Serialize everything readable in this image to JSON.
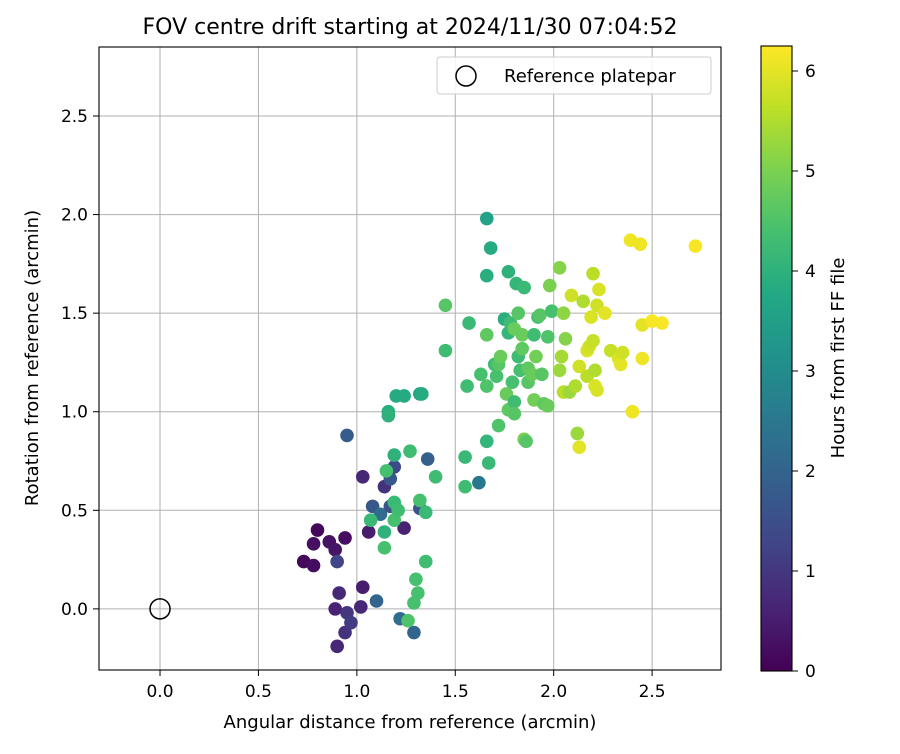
{
  "chart_data": {
    "type": "scatter",
    "title": "FOV centre drift starting at 2024/11/30 07:04:52",
    "xlabel": "Angular distance from reference (arcmin)",
    "ylabel": "Rotation from reference (arcmin)",
    "xlim": [
      -0.31,
      2.85
    ],
    "ylim": [
      -0.31,
      2.85
    ],
    "xticks": [
      0.0,
      0.5,
      1.0,
      1.5,
      2.0,
      2.5
    ],
    "yticks": [
      0.0,
      0.5,
      1.0,
      1.5,
      2.0,
      2.5
    ],
    "xtick_labels": [
      "0.0",
      "0.5",
      "1.0",
      "1.5",
      "2.0",
      "2.5"
    ],
    "ytick_labels": [
      "0.0",
      "0.5",
      "1.0",
      "1.5",
      "2.0",
      "2.5"
    ],
    "grid": true,
    "legend": {
      "placement": "top-right",
      "label": "Reference platepar",
      "marker": "open-circle"
    },
    "reference_point": {
      "x": 0.0,
      "y": 0.0
    },
    "colorbar": {
      "label": "Hours from first FF file",
      "range": [
        0,
        6.25
      ],
      "ticks": [
        0,
        1,
        2,
        3,
        4,
        5,
        6
      ],
      "tick_labels": [
        "0",
        "1",
        "2",
        "3",
        "4",
        "5",
        "6"
      ],
      "colormap": "viridis"
    },
    "points": [
      {
        "x": 0.73,
        "y": 0.24,
        "h": 0.15
      },
      {
        "x": 0.78,
        "y": 0.22,
        "h": 0.2
      },
      {
        "x": 0.78,
        "y": 0.33,
        "h": 0.25
      },
      {
        "x": 0.8,
        "y": 0.4,
        "h": 0.1
      },
      {
        "x": 0.86,
        "y": 0.34,
        "h": 0.3
      },
      {
        "x": 0.89,
        "y": 0.3,
        "h": 0.35
      },
      {
        "x": 0.94,
        "y": 0.36,
        "h": 0.2
      },
      {
        "x": 0.89,
        "y": 0.0,
        "h": 0.6
      },
      {
        "x": 0.91,
        "y": 0.08,
        "h": 0.7
      },
      {
        "x": 0.9,
        "y": 0.24,
        "h": 1.3
      },
      {
        "x": 0.9,
        "y": -0.19,
        "h": 0.7
      },
      {
        "x": 0.94,
        "y": -0.12,
        "h": 0.9
      },
      {
        "x": 0.95,
        "y": -0.02,
        "h": 1.0
      },
      {
        "x": 0.97,
        "y": -0.07,
        "h": 1.1
      },
      {
        "x": 0.95,
        "y": 0.88,
        "h": 1.8
      },
      {
        "x": 1.02,
        "y": 0.01,
        "h": 0.7
      },
      {
        "x": 1.03,
        "y": 0.11,
        "h": 0.5
      },
      {
        "x": 1.03,
        "y": 0.67,
        "h": 0.7
      },
      {
        "x": 1.06,
        "y": 0.39,
        "h": 0.5
      },
      {
        "x": 1.08,
        "y": 0.52,
        "h": 1.7
      },
      {
        "x": 1.1,
        "y": 0.04,
        "h": 2.0
      },
      {
        "x": 1.12,
        "y": 0.48,
        "h": 2.2
      },
      {
        "x": 1.14,
        "y": 0.62,
        "h": 0.9
      },
      {
        "x": 1.17,
        "y": 0.52,
        "h": 1.6
      },
      {
        "x": 1.17,
        "y": 0.66,
        "h": 1.7
      },
      {
        "x": 1.19,
        "y": 0.72,
        "h": 1.4
      },
      {
        "x": 1.22,
        "y": -0.05,
        "h": 2.2
      },
      {
        "x": 1.24,
        "y": 0.41,
        "h": 0.6
      },
      {
        "x": 1.29,
        "y": -0.12,
        "h": 2.0
      },
      {
        "x": 1.32,
        "y": 0.51,
        "h": 1.6
      },
      {
        "x": 1.36,
        "y": 0.76,
        "h": 1.9
      },
      {
        "x": 1.62,
        "y": 0.64,
        "h": 2.5
      },
      {
        "x": 1.07,
        "y": 0.45,
        "h": 4.2
      },
      {
        "x": 1.14,
        "y": 0.39,
        "h": 4.0
      },
      {
        "x": 1.14,
        "y": 0.31,
        "h": 4.4
      },
      {
        "x": 1.15,
        "y": 0.7,
        "h": 4.4
      },
      {
        "x": 1.16,
        "y": 1.0,
        "h": 3.9
      },
      {
        "x": 1.16,
        "y": 0.98,
        "h": 4.0
      },
      {
        "x": 1.19,
        "y": 0.78,
        "h": 4.0
      },
      {
        "x": 1.19,
        "y": 0.54,
        "h": 4.2
      },
      {
        "x": 1.19,
        "y": 0.45,
        "h": 4.4
      },
      {
        "x": 1.2,
        "y": 1.08,
        "h": 3.8
      },
      {
        "x": 1.24,
        "y": 1.08,
        "h": 3.8
      },
      {
        "x": 1.21,
        "y": 0.5,
        "h": 4.3
      },
      {
        "x": 1.26,
        "y": -0.06,
        "h": 4.5
      },
      {
        "x": 1.27,
        "y": 0.8,
        "h": 4.3
      },
      {
        "x": 1.29,
        "y": 0.03,
        "h": 4.4
      },
      {
        "x": 1.3,
        "y": 0.15,
        "h": 4.4
      },
      {
        "x": 1.31,
        "y": 0.08,
        "h": 4.4
      },
      {
        "x": 1.32,
        "y": 1.09,
        "h": 3.7
      },
      {
        "x": 1.33,
        "y": 1.09,
        "h": 3.8
      },
      {
        "x": 1.32,
        "y": 0.55,
        "h": 4.4
      },
      {
        "x": 1.35,
        "y": 0.24,
        "h": 4.3
      },
      {
        "x": 1.35,
        "y": 0.49,
        "h": 4.2
      },
      {
        "x": 1.4,
        "y": 0.67,
        "h": 4.3
      },
      {
        "x": 1.45,
        "y": 1.54,
        "h": 4.6
      },
      {
        "x": 1.45,
        "y": 1.31,
        "h": 4.3
      },
      {
        "x": 1.55,
        "y": 0.77,
        "h": 4.2
      },
      {
        "x": 1.55,
        "y": 0.62,
        "h": 4.3
      },
      {
        "x": 1.56,
        "y": 1.13,
        "h": 4.3
      },
      {
        "x": 1.57,
        "y": 1.45,
        "h": 4.2
      },
      {
        "x": 1.63,
        "y": 1.19,
        "h": 4.4
      },
      {
        "x": 1.66,
        "y": 1.98,
        "h": 3.6
      },
      {
        "x": 1.68,
        "y": 1.83,
        "h": 3.8
      },
      {
        "x": 1.66,
        "y": 1.69,
        "h": 3.9
      },
      {
        "x": 1.66,
        "y": 1.13,
        "h": 4.5
      },
      {
        "x": 1.66,
        "y": 1.39,
        "h": 4.7
      },
      {
        "x": 1.66,
        "y": 0.85,
        "h": 4.1
      },
      {
        "x": 1.67,
        "y": 0.74,
        "h": 4.2
      },
      {
        "x": 1.7,
        "y": 1.24,
        "h": 4.3
      },
      {
        "x": 1.71,
        "y": 1.18,
        "h": 4.4
      },
      {
        "x": 1.72,
        "y": 0.93,
        "h": 4.5
      },
      {
        "x": 1.72,
        "y": 1.24,
        "h": 4.6
      },
      {
        "x": 1.73,
        "y": 1.28,
        "h": 4.8
      },
      {
        "x": 1.75,
        "y": 1.47,
        "h": 3.9
      },
      {
        "x": 1.76,
        "y": 1.09,
        "h": 4.8
      },
      {
        "x": 1.77,
        "y": 1.71,
        "h": 4.0
      },
      {
        "x": 1.77,
        "y": 1.4,
        "h": 4.1
      },
      {
        "x": 1.77,
        "y": 1.01,
        "h": 4.7
      },
      {
        "x": 1.78,
        "y": 1.45,
        "h": 4.3
      },
      {
        "x": 1.79,
        "y": 1.15,
        "h": 4.4
      },
      {
        "x": 1.8,
        "y": 1.05,
        "h": 4.3
      },
      {
        "x": 1.8,
        "y": 0.99,
        "h": 4.6
      },
      {
        "x": 1.8,
        "y": 1.42,
        "h": 4.8
      },
      {
        "x": 1.81,
        "y": 1.65,
        "h": 4.1
      },
      {
        "x": 1.82,
        "y": 1.28,
        "h": 4.3
      },
      {
        "x": 1.82,
        "y": 1.5,
        "h": 4.6
      },
      {
        "x": 1.83,
        "y": 1.21,
        "h": 4.4
      },
      {
        "x": 1.84,
        "y": 1.32,
        "h": 4.7
      },
      {
        "x": 1.84,
        "y": 1.39,
        "h": 4.8
      },
      {
        "x": 1.85,
        "y": 1.63,
        "h": 4.2
      },
      {
        "x": 1.85,
        "y": 0.86,
        "h": 5.0
      },
      {
        "x": 1.86,
        "y": 0.85,
        "h": 4.6
      },
      {
        "x": 1.87,
        "y": 1.15,
        "h": 4.6
      },
      {
        "x": 1.87,
        "y": 1.22,
        "h": 4.7
      },
      {
        "x": 1.89,
        "y": 1.19,
        "h": 4.8
      },
      {
        "x": 1.9,
        "y": 1.39,
        "h": 4.3
      },
      {
        "x": 1.9,
        "y": 1.06,
        "h": 4.9
      },
      {
        "x": 1.91,
        "y": 1.28,
        "h": 4.9
      },
      {
        "x": 1.92,
        "y": 1.48,
        "h": 4.4
      },
      {
        "x": 1.93,
        "y": 1.49,
        "h": 4.6
      },
      {
        "x": 1.94,
        "y": 1.19,
        "h": 4.6
      },
      {
        "x": 1.95,
        "y": 1.04,
        "h": 4.7
      },
      {
        "x": 1.97,
        "y": 1.38,
        "h": 4.5
      },
      {
        "x": 1.97,
        "y": 1.03,
        "h": 4.8
      },
      {
        "x": 1.98,
        "y": 1.64,
        "h": 5.0
      },
      {
        "x": 1.99,
        "y": 1.51,
        "h": 4.4
      },
      {
        "x": 2.03,
        "y": 1.73,
        "h": 5.1
      },
      {
        "x": 2.03,
        "y": 1.21,
        "h": 5.3
      },
      {
        "x": 2.04,
        "y": 1.28,
        "h": 5.4
      },
      {
        "x": 2.05,
        "y": 1.5,
        "h": 5.2
      },
      {
        "x": 2.05,
        "y": 1.1,
        "h": 5.6
      },
      {
        "x": 2.06,
        "y": 1.37,
        "h": 5.1
      },
      {
        "x": 2.08,
        "y": 1.1,
        "h": 5.3
      },
      {
        "x": 2.09,
        "y": 1.59,
        "h": 5.8
      },
      {
        "x": 2.11,
        "y": 1.13,
        "h": 5.5
      },
      {
        "x": 2.12,
        "y": 0.89,
        "h": 5.3
      },
      {
        "x": 2.13,
        "y": 1.23,
        "h": 5.8
      },
      {
        "x": 2.13,
        "y": 0.82,
        "h": 6.0
      },
      {
        "x": 2.15,
        "y": 1.56,
        "h": 5.5
      },
      {
        "x": 2.17,
        "y": 1.18,
        "h": 5.6
      },
      {
        "x": 2.17,
        "y": 1.31,
        "h": 5.9
      },
      {
        "x": 2.18,
        "y": 1.33,
        "h": 5.8
      },
      {
        "x": 2.19,
        "y": 1.48,
        "h": 5.9
      },
      {
        "x": 2.2,
        "y": 1.7,
        "h": 5.6
      },
      {
        "x": 2.2,
        "y": 1.36,
        "h": 5.7
      },
      {
        "x": 2.21,
        "y": 1.13,
        "h": 5.9
      },
      {
        "x": 2.21,
        "y": 1.21,
        "h": 5.5
      },
      {
        "x": 2.22,
        "y": 1.54,
        "h": 5.8
      },
      {
        "x": 2.22,
        "y": 1.11,
        "h": 5.9
      },
      {
        "x": 2.23,
        "y": 1.62,
        "h": 5.9
      },
      {
        "x": 2.26,
        "y": 1.5,
        "h": 6.0
      },
      {
        "x": 2.29,
        "y": 1.31,
        "h": 5.7
      },
      {
        "x": 2.33,
        "y": 1.27,
        "h": 5.9
      },
      {
        "x": 2.34,
        "y": 1.24,
        "h": 6.0
      },
      {
        "x": 2.35,
        "y": 1.3,
        "h": 5.8
      },
      {
        "x": 2.39,
        "y": 1.87,
        "h": 6.1
      },
      {
        "x": 2.4,
        "y": 1.0,
        "h": 6.1
      },
      {
        "x": 2.44,
        "y": 1.85,
        "h": 6.1
      },
      {
        "x": 2.45,
        "y": 1.44,
        "h": 6.0
      },
      {
        "x": 2.45,
        "y": 1.27,
        "h": 6.1
      },
      {
        "x": 2.5,
        "y": 1.46,
        "h": 6.2
      },
      {
        "x": 2.55,
        "y": 1.45,
        "h": 6.2
      },
      {
        "x": 2.72,
        "y": 1.84,
        "h": 6.2
      }
    ]
  }
}
